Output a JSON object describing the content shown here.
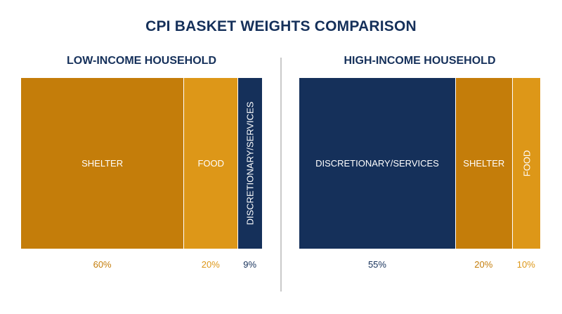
{
  "title": "CPI BASKET WEIGHTS COMPARISON",
  "colors": {
    "shelter": "#c47d0a",
    "food": "#dd9718",
    "discretionary": "#15305a",
    "title": "#15305a"
  },
  "chart_data": [
    {
      "type": "bar",
      "stacked": true,
      "orientation": "horizontal",
      "title": "LOW-INCOME HOUSEHOLD",
      "segments": [
        {
          "name": "SHELTER",
          "value": 60,
          "label": "60%",
          "color": "#c47d0a",
          "label_color": "#c47d0a"
        },
        {
          "name": "FOOD",
          "value": 20,
          "label": "20%",
          "color": "#dd9718",
          "label_color": "#dd9718"
        },
        {
          "name": "DISCRETIONARY/SERVICES",
          "value": 9,
          "label": "9%",
          "color": "#15305a",
          "label_color": "#15305a"
        }
      ]
    },
    {
      "type": "bar",
      "stacked": true,
      "orientation": "horizontal",
      "title": "HIGH-INCOME HOUSEHOLD",
      "segments": [
        {
          "name": "DISCRETIONARY/SERVICES",
          "value": 55,
          "label": "55%",
          "color": "#15305a",
          "label_color": "#15305a"
        },
        {
          "name": "SHELTER",
          "value": 20,
          "label": "20%",
          "color": "#c47d0a",
          "label_color": "#c47d0a"
        },
        {
          "name": "FOOD",
          "value": 10,
          "label": "10%",
          "color": "#dd9718",
          "label_color": "#dd9718"
        }
      ]
    }
  ]
}
